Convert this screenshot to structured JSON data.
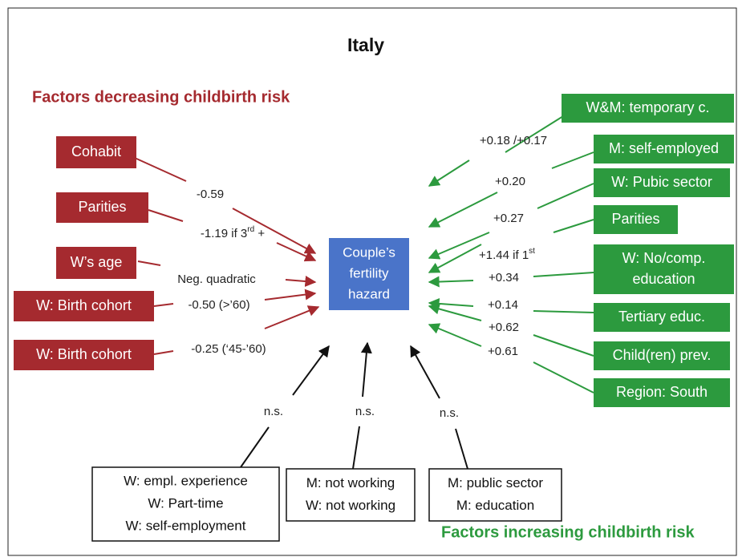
{
  "title": "Italy",
  "decreasing_heading": "Factors decreasing childbirth risk",
  "increasing_heading": "Factors increasing childbirth risk",
  "center": {
    "lines": [
      "Couple’s",
      "fertility",
      "hazard"
    ]
  },
  "decreasing": [
    {
      "lines": [
        "Cohabit"
      ],
      "effect": "-0.59"
    },
    {
      "lines": [
        "Parities"
      ],
      "effect": {
        "text": "-1.19 if 3",
        "sup": "rd",
        "tail": " +"
      }
    },
    {
      "lines": [
        "W’s age"
      ],
      "effect": "Neg. quadratic"
    },
    {
      "lines": [
        "W: Birth cohort"
      ],
      "effect": "-0.50 (>’60)"
    },
    {
      "lines": [
        "W: Birth cohort"
      ],
      "effect": "-0.25 (‘45-’60)"
    }
  ],
  "increasing": [
    {
      "lines": [
        "W&M: temporary c."
      ],
      "effect": "+0.18 /+0.17"
    },
    {
      "lines": [
        "M: self-employed"
      ],
      "effect": "+0.20"
    },
    {
      "lines": [
        "W: Pubic sector"
      ],
      "effect": "+0.27"
    },
    {
      "lines": [
        "Parities"
      ],
      "effect": {
        "text": "+1.44 if 1",
        "sup": "st"
      }
    },
    {
      "lines": [
        "W: No/comp.",
        "education"
      ],
      "effect": "+0.34"
    },
    {
      "lines": [
        "Tertiary educ."
      ],
      "effect": "+0.14"
    },
    {
      "lines": [
        "Child(ren) prev."
      ],
      "effect": "+0.62"
    },
    {
      "lines": [
        "Region: South"
      ],
      "effect": "+0.61"
    }
  ],
  "insignificant": [
    {
      "lines": [
        "W: empl. experience",
        "W: Part-time",
        "W: self-employment"
      ],
      "effect": "n.s."
    },
    {
      "lines": [
        "M: not working",
        "W: not working"
      ],
      "effect": "n.s."
    },
    {
      "lines": [
        "M: public sector",
        "M: education"
      ],
      "effect": "n.s."
    }
  ]
}
